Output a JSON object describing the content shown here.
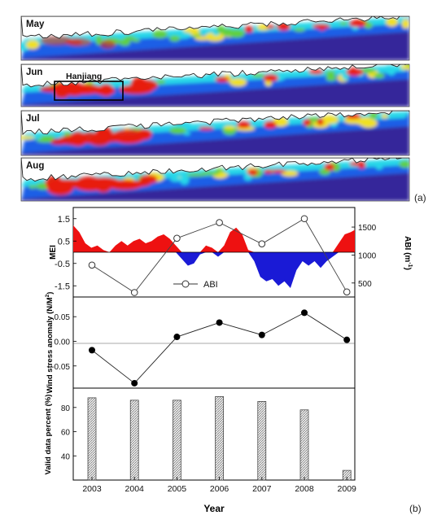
{
  "panel_a": {
    "label": "(a)",
    "months": [
      "May",
      "Jun",
      "Jul",
      "Aug"
    ],
    "box_label": "Hanjiang",
    "colors": {
      "deep": "#3a1e8c",
      "blue": "#1f5fe6",
      "cyan": "#28d7e8",
      "green": "#5fd040",
      "yellow": "#f0e020",
      "red": "#e81c0c",
      "land": "#ffffff"
    }
  },
  "panel_b": {
    "label": "(b)",
    "xlabel": "Year",
    "years": [
      "2003",
      "2004",
      "2005",
      "2006",
      "2007",
      "2008",
      "2009"
    ]
  },
  "chart_data": [
    {
      "type": "area",
      "ylabel": "MEI",
      "ylim": [
        -2,
        2
      ],
      "y_ticks": [
        "1.5",
        "0.5",
        "-0.5",
        "-1.5"
      ],
      "y_tick_values": [
        1.5,
        0.5,
        -0.5,
        -1.5
      ],
      "x_range": [
        2002.6,
        2009.6
      ],
      "positive_color": "#ee1111",
      "negative_color": "#1a1ad6",
      "series": [
        {
          "x": [
            2002.6,
            2002.75,
            2002.9,
            2003.05,
            2003.2,
            2003.35,
            2003.5,
            2003.65,
            2003.8,
            2003.95,
            2004.1,
            2004.25,
            2004.4,
            2004.55,
            2004.7,
            2004.85,
            2005.0,
            2005.15,
            2005.3,
            2005.45,
            2005.6,
            2005.75,
            2005.9,
            2006.05,
            2006.2,
            2006.35,
            2006.5,
            2006.65,
            2006.8,
            2006.95,
            2007.1,
            2007.25,
            2007.4,
            2007.55,
            2007.7,
            2007.85,
            2008.0,
            2008.15,
            2008.3,
            2008.45,
            2008.6,
            2008.75,
            2008.9,
            2009.05,
            2009.2,
            2009.35,
            2009.5,
            2009.6
          ],
          "values": [
            1.2,
            0.9,
            0.4,
            0.2,
            0.3,
            0.1,
            0.0,
            0.3,
            0.5,
            0.3,
            0.5,
            0.6,
            0.4,
            0.5,
            0.7,
            0.8,
            0.6,
            0.3,
            -0.3,
            -0.6,
            -0.5,
            -0.1,
            0.3,
            0.2,
            -0.2,
            0.3,
            0.9,
            1.1,
            0.8,
            0.1,
            -0.4,
            -1.1,
            -1.3,
            -1.2,
            -1.5,
            -1.3,
            -1.6,
            -0.8,
            -0.4,
            -0.6,
            -0.4,
            -0.7,
            -0.4,
            -0.2,
            0.4,
            0.8,
            0.9,
            1.0
          ]
        }
      ]
    },
    {
      "type": "line",
      "ylabel": "ABI (m",
      "ylabel_superscript": "-1",
      "ylabel_close": ")",
      "ylim": [
        250,
        1850
      ],
      "y_ticks": [
        "1500",
        "1000",
        "500"
      ],
      "y_tick_values": [
        1500,
        1000,
        500
      ],
      "legend": "ABI",
      "legend_position": "bottom-center",
      "series": [
        {
          "name": "ABI",
          "x": [
            2003,
            2004,
            2005,
            2006,
            2007,
            2008,
            2009
          ],
          "values": [
            820,
            330,
            1300,
            1580,
            1200,
            1650,
            340
          ]
        }
      ]
    },
    {
      "type": "scatter",
      "ylabel": "Wind stress anomaly (N/M",
      "ylabel_superscript": "2",
      "ylabel_close": ")",
      "ylim": [
        -0.095,
        0.09
      ],
      "y_ticks": [
        "0.05",
        "0.00",
        "-0.05"
      ],
      "y_tick_values": [
        0.05,
        0.0,
        -0.05
      ],
      "series": [
        {
          "x": [
            2003,
            2004,
            2005,
            2006,
            2007,
            2008,
            2009
          ],
          "values": [
            -0.018,
            -0.085,
            0.009,
            0.038,
            0.013,
            0.058,
            0.003
          ]
        }
      ]
    },
    {
      "type": "bar",
      "ylabel": "Valid data percent (%)",
      "ylim": [
        20,
        96
      ],
      "y_ticks": [
        "80",
        "60",
        "40"
      ],
      "y_tick_values": [
        80,
        60,
        40
      ],
      "categories": [
        "2003",
        "2004",
        "2005",
        "2006",
        "2007",
        "2008",
        "2009"
      ],
      "values": [
        88,
        86,
        86,
        89,
        85,
        78,
        28
      ]
    }
  ]
}
